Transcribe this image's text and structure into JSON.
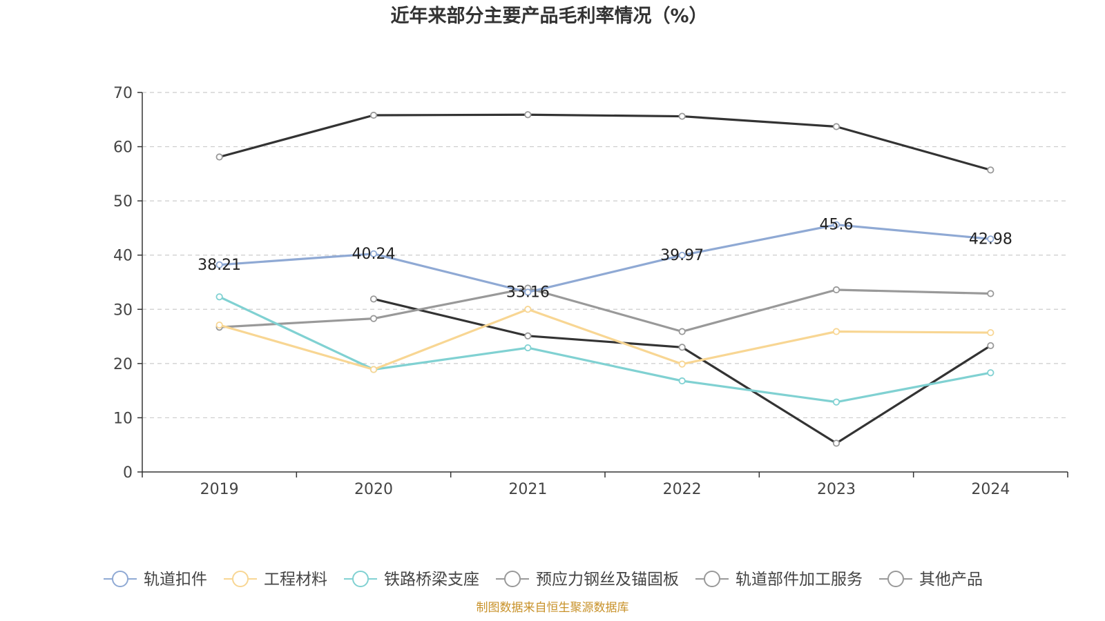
{
  "chart_data": {
    "type": "line",
    "title": "近年来部分主要产品毛利率情况（%）",
    "xlabel": "",
    "ylabel": "",
    "ylim": [
      0,
      70
    ],
    "yticks": [
      "0",
      "10",
      "20",
      "30",
      "40",
      "50",
      "60",
      "70"
    ],
    "categories": [
      "2019",
      "2020",
      "2021",
      "2022",
      "2023",
      "2024"
    ],
    "grid": true,
    "legend_position": "bottom",
    "series": [
      {
        "name": "轨道扣件",
        "color": "#8fa9d4",
        "values": [
          38.21,
          40.24,
          33.16,
          39.97,
          45.6,
          42.98
        ],
        "labels": [
          "38.21",
          "40.24",
          "33.16",
          "39.97",
          "45.6",
          "42.98"
        ]
      },
      {
        "name": "工程材料",
        "color": "#f8d693",
        "values": [
          27.1,
          18.9,
          30.0,
          19.9,
          25.9,
          25.7
        ]
      },
      {
        "name": "铁路桥梁支座",
        "color": "#80d1d2",
        "values": [
          32.3,
          18.9,
          22.9,
          16.8,
          12.9,
          18.3
        ]
      },
      {
        "name": "预应力钢丝及锚固板",
        "color": "#999999",
        "values": [
          26.7,
          28.3,
          33.9,
          25.9,
          33.6,
          32.9
        ]
      },
      {
        "name": "轨道部件加工服务",
        "color": "#333333",
        "values": [
          null,
          31.9,
          25.1,
          23.0,
          5.3,
          23.3
        ]
      },
      {
        "name": "其他产品",
        "color": "#333333",
        "values": [
          58.1,
          65.8,
          65.9,
          65.6,
          63.7,
          55.7
        ]
      }
    ],
    "source": "制图数据来自恒生聚源数据库"
  }
}
